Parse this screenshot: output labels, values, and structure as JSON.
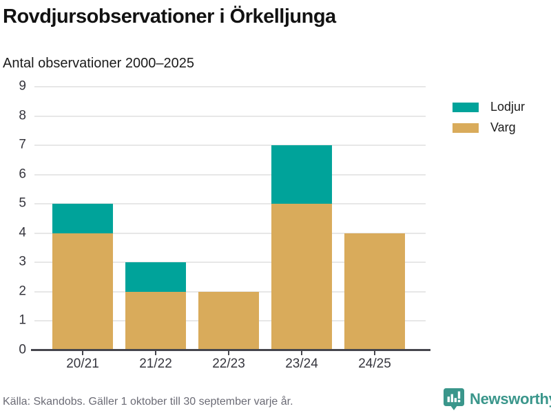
{
  "header": {},
  "chart_data": {
    "type": "bar",
    "stacked": true,
    "title": "Rovdjursobservationer i Örkelljunga",
    "subtitle": "Antal observationer 2000–2025",
    "categories": [
      "20/21",
      "21/22",
      "22/23",
      "23/24",
      "24/25"
    ],
    "series": [
      {
        "name": "Lodjur",
        "color": "#00a39a",
        "values": [
          1,
          1,
          0,
          2,
          0
        ]
      },
      {
        "name": "Varg",
        "color": "#d9ab5b",
        "values": [
          4,
          2,
          2,
          5,
          4
        ]
      }
    ],
    "stacking_bottom_up": [
      "Varg",
      "Lodjur"
    ],
    "ylim": [
      0,
      9
    ],
    "yticks": [
      0,
      1,
      2,
      3,
      4,
      5,
      6,
      7,
      8,
      9
    ],
    "xlabel": "",
    "ylabel": "",
    "grid": true,
    "legend_position": "top-right"
  },
  "footer": {
    "source": "Källa: Skandobs. Gäller 1 oktober till 30 september varje år.",
    "brand": "Newsworthy",
    "brand_color": "#3a968b"
  }
}
